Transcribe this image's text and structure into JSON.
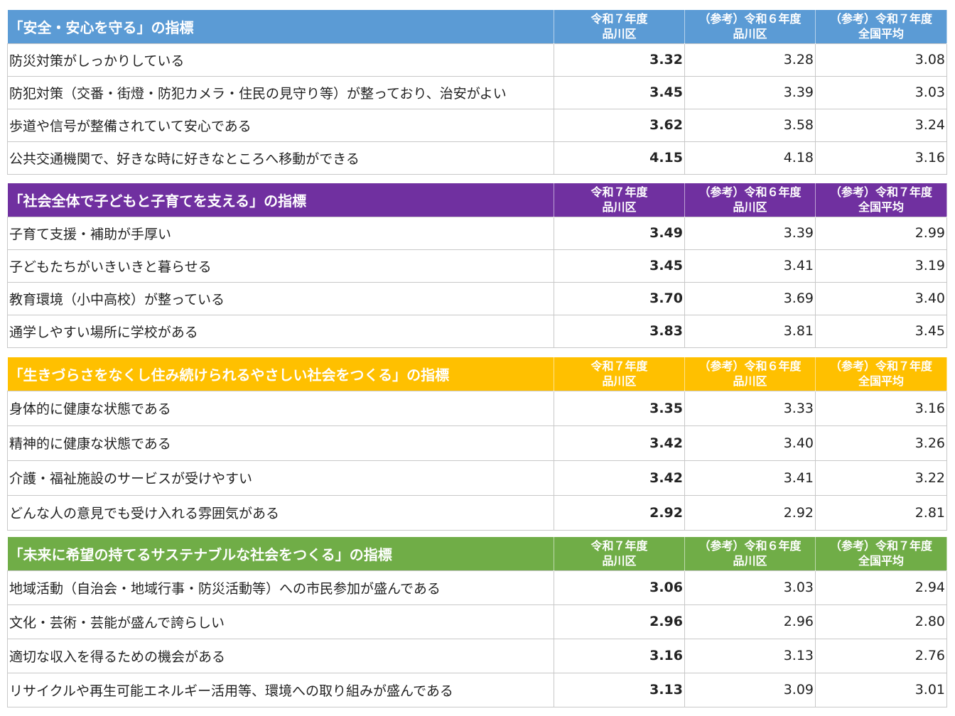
{
  "colors": {
    "section1": "#5b9bd5",
    "section2": "#7030a0",
    "section3": "#ffc000",
    "section4": "#70ad47"
  },
  "sections": [
    {
      "title": "「安全・安心を守る」の指標",
      "headers": [
        {
          "line1": "令和７年度",
          "line2": "品川区"
        },
        {
          "line1": "（参考）令和６年度",
          "line2": "品川区"
        },
        {
          "line1": "（参考）令和７年度",
          "line2": "全国平均"
        }
      ],
      "rows": [
        {
          "label": "防災対策がしっかりしている",
          "v1": "3.32",
          "v2": "3.28",
          "v3": "3.08"
        },
        {
          "label": "防犯対策（交番・街燈・防犯カメラ・住民の見守り等）が整っており、治安がよい",
          "v1": "3.45",
          "v2": "3.39",
          "v3": "3.03"
        },
        {
          "label": "歩道や信号が整備されていて安心である",
          "v1": "3.62",
          "v2": "3.58",
          "v3": "3.24"
        },
        {
          "label": "公共交通機関で、好きな時に好きなところへ移動ができる",
          "v1": "4.15",
          "v2": "4.18",
          "v3": "3.16"
        }
      ]
    },
    {
      "title": "「社会全体で子どもと子育てを支える」の指標",
      "headers": [
        {
          "line1": "令和７年度",
          "line2": "品川区"
        },
        {
          "line1": "（参考）令和６年度",
          "line2": "品川区"
        },
        {
          "line1": "（参考）令和７年度",
          "line2": "全国平均"
        }
      ],
      "rows": [
        {
          "label": "子育て支援・補助が手厚い",
          "v1": "3.49",
          "v2": "3.39",
          "v3": "2.99"
        },
        {
          "label": "子どもたちがいきいきと暮らせる",
          "v1": "3.45",
          "v2": "3.41",
          "v3": "3.19"
        },
        {
          "label": "教育環境（小中高校）が整っている",
          "v1": "3.70",
          "v2": "3.69",
          "v3": "3.40"
        },
        {
          "label": "通学しやすい場所に学校がある",
          "v1": "3.83",
          "v2": "3.81",
          "v3": "3.45"
        }
      ]
    },
    {
      "title": "「生きづらさをなくし住み続けられるやさしい社会をつくる」の指標",
      "headers": [
        {
          "line1": "令和７年度",
          "line2": "品川区"
        },
        {
          "line1": "（参考）令和６年度",
          "line2": "品川区"
        },
        {
          "line1": "（参考）令和７年度",
          "line2": "全国平均"
        }
      ],
      "rows": [
        {
          "label": "身体的に健康な状態である",
          "v1": "3.35",
          "v2": "3.33",
          "v3": "3.16"
        },
        {
          "label": "精神的に健康な状態である",
          "v1": "3.42",
          "v2": "3.40",
          "v3": "3.26"
        },
        {
          "label": "介護・福祉施設のサービスが受けやすい",
          "v1": "3.42",
          "v2": "3.41",
          "v3": "3.22"
        },
        {
          "label": "どんな人の意見でも受け入れる雰囲気がある",
          "v1": "2.92",
          "v2": "2.92",
          "v3": "2.81"
        }
      ]
    },
    {
      "title": "「未来に希望の持てるサステナブルな社会をつくる」の指標",
      "headers": [
        {
          "line1": "令和７年度",
          "line2": "品川区"
        },
        {
          "line1": "（参考）令和６年度",
          "line2": "品川区"
        },
        {
          "line1": "（参考）令和７年度",
          "line2": "全国平均"
        }
      ],
      "rows": [
        {
          "label": "地域活動（自治会・地域行事・防災活動等）への市民参加が盛んである",
          "v1": "3.06",
          "v2": "3.03",
          "v3": "2.94"
        },
        {
          "label": "文化・芸術・芸能が盛んで誇らしい",
          "v1": "2.96",
          "v2": "2.96",
          "v3": "2.80"
        },
        {
          "label": "適切な収入を得るための機会がある",
          "v1": "3.16",
          "v2": "3.13",
          "v3": "2.76"
        },
        {
          "label": "リサイクルや再生可能エネルギー活用等、環境への取り組みが盛んである",
          "v1": "3.13",
          "v2": "3.09",
          "v3": "3.01"
        }
      ]
    }
  ]
}
